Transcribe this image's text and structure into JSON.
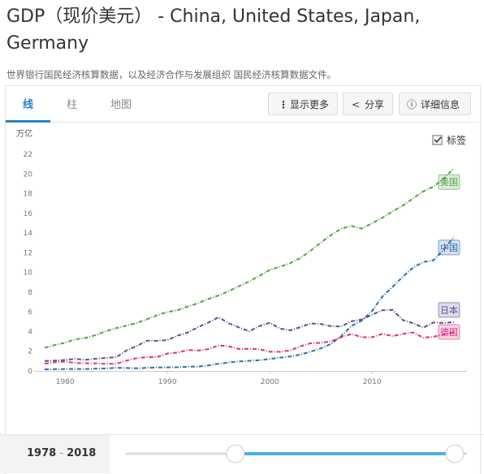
{
  "title": "GDP（现价美元） - China, United States, Japan, Germany",
  "subtitle": "世界银行国民经济核算数据，以及经济合作与发展组织 国民经济核算数据文件。",
  "tabs": [
    "线",
    "柱",
    "地图"
  ],
  "buttons": [
    "显示更多",
    "分享",
    "详细信息"
  ],
  "label_toggle": "标签",
  "range": {
    "start": "1978",
    "separator": "-",
    "end": "2018"
  },
  "chart_data": {
    "type": "line",
    "y_label": "万亿",
    "x": [
      1978,
      1979,
      1980,
      1981,
      1982,
      1983,
      1984,
      1985,
      1986,
      1987,
      1988,
      1989,
      1990,
      1991,
      1992,
      1993,
      1994,
      1995,
      1996,
      1997,
      1998,
      1999,
      2000,
      2001,
      2002,
      2003,
      2004,
      2005,
      2006,
      2007,
      2008,
      2009,
      2010,
      2011,
      2012,
      2013,
      2014,
      2015,
      2016,
      2017,
      2018
    ],
    "xlim": [
      1977,
      2019
    ],
    "xticks": [
      1980,
      1990,
      2000,
      2010
    ],
    "ylim": [
      0,
      22
    ],
    "yticks": [
      0,
      2,
      4,
      6,
      8,
      10,
      12,
      14,
      16,
      18,
      20,
      22
    ],
    "series": [
      {
        "name": "美国",
        "color": "#55a247",
        "values": [
          2.35,
          2.63,
          2.86,
          3.21,
          3.35,
          3.64,
          4.04,
          4.35,
          4.59,
          4.87,
          5.25,
          5.66,
          5.98,
          6.17,
          6.54,
          6.88,
          7.31,
          7.66,
          8.1,
          8.61,
          9.09,
          9.66,
          10.25,
          10.58,
          10.94,
          11.46,
          12.21,
          13.04,
          13.81,
          14.45,
          14.71,
          14.45,
          14.99,
          15.54,
          16.2,
          16.78,
          17.52,
          18.22,
          18.71,
          19.52,
          20.58
        ]
      },
      {
        "name": "中国",
        "color": "#2f6ea6",
        "values": [
          0.15,
          0.18,
          0.19,
          0.2,
          0.2,
          0.23,
          0.26,
          0.31,
          0.3,
          0.27,
          0.31,
          0.35,
          0.36,
          0.38,
          0.43,
          0.44,
          0.56,
          0.73,
          0.86,
          0.96,
          1.03,
          1.09,
          1.21,
          1.34,
          1.47,
          1.66,
          1.96,
          2.29,
          2.75,
          3.55,
          4.59,
          5.1,
          6.09,
          7.55,
          8.53,
          9.57,
          10.48,
          11.06,
          11.23,
          12.31,
          13.61
        ]
      },
      {
        "name": "日本",
        "color": "#5b4f8f",
        "values": [
          1.01,
          1.05,
          1.11,
          1.22,
          1.13,
          1.24,
          1.32,
          1.4,
          2.08,
          2.53,
          3.07,
          3.05,
          3.13,
          3.58,
          3.91,
          4.45,
          4.91,
          5.45,
          4.83,
          4.41,
          4.03,
          4.56,
          4.89,
          4.3,
          4.12,
          4.45,
          4.82,
          4.76,
          4.53,
          4.52,
          5.04,
          5.23,
          5.7,
          6.16,
          6.2,
          5.16,
          4.85,
          4.39,
          4.92,
          4.87,
          4.95
        ]
      },
      {
        "name": "德国",
        "color": "#d6337f",
        "values": [
          0.74,
          0.88,
          0.95,
          0.81,
          0.78,
          0.77,
          0.71,
          0.73,
          1.04,
          1.3,
          1.4,
          1.4,
          1.77,
          1.87,
          2.13,
          2.07,
          2.21,
          2.59,
          2.5,
          2.22,
          2.24,
          2.2,
          1.95,
          1.94,
          2.08,
          2.5,
          2.81,
          2.85,
          3.0,
          3.43,
          3.75,
          3.42,
          3.42,
          3.76,
          3.54,
          3.75,
          3.9,
          3.38,
          3.47,
          3.69,
          3.95
        ]
      }
    ],
    "grid": false
  }
}
